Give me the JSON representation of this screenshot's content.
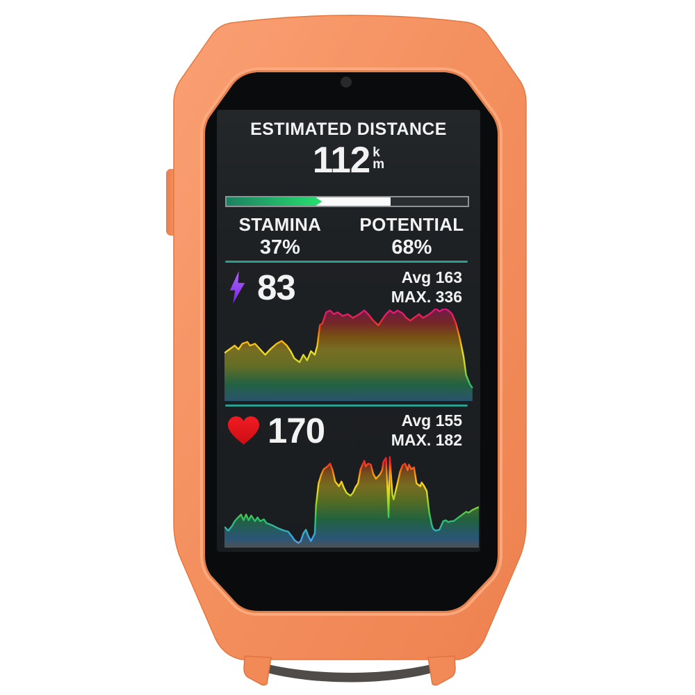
{
  "device": {
    "type": "cycling-computer-in-silicone-case",
    "case_color": "#F28C5B",
    "screen_background": "#1D2023",
    "accent_teal": "#2E9C8E"
  },
  "screen": {
    "title": "ESTIMATED DISTANCE",
    "distance": {
      "value": "112",
      "unit_top": "k",
      "unit_bottom": "m"
    },
    "progress_bar": {
      "stamina_pct": 37,
      "potential_pct": 68,
      "green_start": "#1D8062",
      "green_end": "#26DF6E",
      "white": "#FAFAFA",
      "track": "#2B2E31",
      "border": "#8E9294"
    },
    "stamina": {
      "label": "STAMINA",
      "value": "37%"
    },
    "potential": {
      "label": "POTENTIAL",
      "value": "68%"
    },
    "power": {
      "icon": "lightning-bolt-icon",
      "icon_color": "#8B2FF0",
      "value": "83",
      "avg": "Avg 163",
      "max": "MAX. 336"
    },
    "heart_rate": {
      "icon": "heart-icon",
      "icon_color": "#E8141C",
      "value": "170",
      "avg": "Avg 155",
      "max": "MAX. 182"
    }
  },
  "chart_data": [
    {
      "type": "area",
      "name": "power-trend",
      "current": 83,
      "avg": 163,
      "max": 336,
      "x_range": [
        0,
        100
      ],
      "y_range": [
        0,
        100
      ],
      "grid": false,
      "legend": "none",
      "gradient_stops": [
        [
          0,
          "#3E9BD6"
        ],
        [
          18,
          "#2BBF6E"
        ],
        [
          38,
          "#C8D829"
        ],
        [
          55,
          "#F2DC23"
        ],
        [
          70,
          "#F59300"
        ],
        [
          85,
          "#EE2B31"
        ],
        [
          100,
          "#E01483"
        ]
      ],
      "points": [
        [
          0,
          52
        ],
        [
          2,
          56
        ],
        [
          4,
          60
        ],
        [
          5.5,
          56
        ],
        [
          7,
          62
        ],
        [
          9,
          64
        ],
        [
          10,
          60
        ],
        [
          12,
          62
        ],
        [
          14,
          56
        ],
        [
          16,
          50
        ],
        [
          18,
          56
        ],
        [
          20.5,
          62
        ],
        [
          22.5,
          65
        ],
        [
          24.5,
          60
        ],
        [
          26,
          54
        ],
        [
          27.5,
          46
        ],
        [
          29.5,
          42
        ],
        [
          31,
          50
        ],
        [
          32.5,
          44
        ],
        [
          34,
          54
        ],
        [
          35.5,
          50
        ],
        [
          36.5,
          60
        ],
        [
          37.5,
          82
        ],
        [
          38.5,
          84
        ],
        [
          40,
          96
        ],
        [
          41.5,
          98
        ],
        [
          43,
          94
        ],
        [
          44.5,
          96
        ],
        [
          46.5,
          92
        ],
        [
          48.5,
          94
        ],
        [
          50.5,
          90
        ],
        [
          53,
          94
        ],
        [
          55,
          98
        ],
        [
          56.5,
          94
        ],
        [
          58.5,
          87
        ],
        [
          60.5,
          82
        ],
        [
          61.5,
          86
        ],
        [
          63.5,
          94
        ],
        [
          65,
          98
        ],
        [
          66.5,
          95
        ],
        [
          68,
          98
        ],
        [
          70,
          95
        ],
        [
          71.5,
          90
        ],
        [
          73,
          87
        ],
        [
          75,
          91
        ],
        [
          76.5,
          94
        ],
        [
          78,
          90
        ],
        [
          80,
          93
        ],
        [
          81.5,
          96
        ],
        [
          83,
          100
        ],
        [
          84.5,
          97
        ],
        [
          86.5,
          100
        ],
        [
          88,
          98
        ],
        [
          89.5,
          94
        ],
        [
          91,
          84
        ],
        [
          92.5,
          68
        ],
        [
          94,
          48
        ],
        [
          95,
          28
        ],
        [
          96.5,
          18
        ],
        [
          97.5,
          14
        ]
      ]
    },
    {
      "type": "area",
      "name": "heart-rate-trend",
      "current": 170,
      "avg": 155,
      "max": 182,
      "x_range": [
        0,
        100
      ],
      "y_range": [
        0,
        100
      ],
      "grid": false,
      "legend": "none",
      "gradient_stops": [
        [
          0,
          "#939B9E"
        ],
        [
          10,
          "#3FA4EE"
        ],
        [
          30,
          "#2BC167"
        ],
        [
          50,
          "#A8D824"
        ],
        [
          65,
          "#F5D920"
        ],
        [
          78,
          "#F79612"
        ],
        [
          90,
          "#EF2D24"
        ],
        [
          100,
          "#E8112D"
        ]
      ],
      "points": [
        [
          0,
          22
        ],
        [
          1.5,
          18
        ],
        [
          3,
          23
        ],
        [
          4,
          28
        ],
        [
          5,
          31
        ],
        [
          6.5,
          35
        ],
        [
          7.5,
          29
        ],
        [
          8.5,
          35
        ],
        [
          9.5,
          29
        ],
        [
          10.5,
          34
        ],
        [
          12,
          28
        ],
        [
          13,
          32
        ],
        [
          14,
          28
        ],
        [
          15.5,
          30
        ],
        [
          16.5,
          26
        ],
        [
          18.5,
          24
        ],
        [
          20,
          22
        ],
        [
          21.5,
          20
        ],
        [
          23.5,
          18
        ],
        [
          25,
          17
        ],
        [
          26.5,
          12
        ],
        [
          27.5,
          8
        ],
        [
          29,
          5
        ],
        [
          30,
          7
        ],
        [
          31,
          15
        ],
        [
          32,
          19
        ],
        [
          33,
          12
        ],
        [
          34,
          7
        ],
        [
          35.5,
          15
        ],
        [
          36,
          45
        ],
        [
          37,
          68
        ],
        [
          38,
          77
        ],
        [
          39,
          83
        ],
        [
          40.5,
          86
        ],
        [
          41.5,
          89
        ],
        [
          42.5,
          82
        ],
        [
          43.5,
          70
        ],
        [
          45,
          65
        ],
        [
          46,
          70
        ],
        [
          47,
          63
        ],
        [
          48,
          58
        ],
        [
          49.5,
          55
        ],
        [
          50.5,
          58
        ],
        [
          51.5,
          64
        ],
        [
          52.5,
          68
        ],
        [
          53.5,
          83
        ],
        [
          55,
          92
        ],
        [
          55.5,
          86
        ],
        [
          56.5,
          89
        ],
        [
          57.5,
          88
        ],
        [
          58.5,
          78
        ],
        [
          59.5,
          73
        ],
        [
          61,
          77
        ],
        [
          62,
          82
        ],
        [
          62.5,
          91
        ],
        [
          63.5,
          95
        ],
        [
          64,
          68
        ],
        [
          64.5,
          32
        ],
        [
          65,
          96
        ],
        [
          66,
          56
        ],
        [
          66.5,
          51
        ],
        [
          68,
          68
        ],
        [
          69,
          80
        ],
        [
          70,
          87
        ],
        [
          71,
          89
        ],
        [
          72,
          82
        ],
        [
          72.5,
          88
        ],
        [
          73.5,
          83
        ],
        [
          74.5,
          85
        ],
        [
          75.5,
          68
        ],
        [
          77,
          65
        ],
        [
          77.5,
          69
        ],
        [
          78.5,
          65
        ],
        [
          79.5,
          60
        ],
        [
          80.5,
          37
        ],
        [
          81.5,
          24
        ],
        [
          82,
          20
        ],
        [
          83,
          18
        ],
        [
          84.5,
          19
        ],
        [
          86,
          28
        ],
        [
          87,
          29
        ],
        [
          88,
          27
        ],
        [
          89,
          28
        ],
        [
          90,
          28
        ],
        [
          91.5,
          31
        ],
        [
          92.5,
          33
        ],
        [
          94,
          36
        ],
        [
          95,
          38
        ],
        [
          96,
          37
        ],
        [
          97.5,
          40
        ],
        [
          100,
          43
        ]
      ]
    }
  ]
}
